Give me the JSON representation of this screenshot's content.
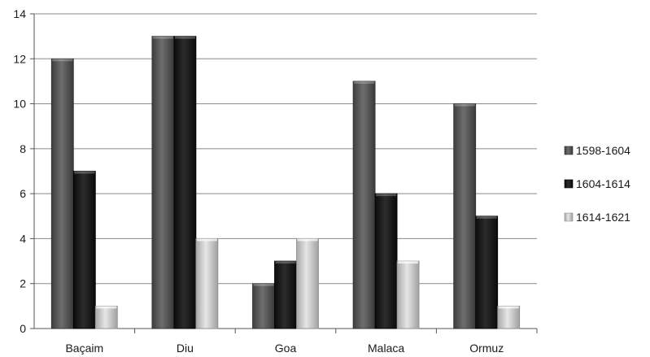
{
  "chart_data": {
    "type": "bar",
    "categories": [
      "Baçaim",
      "Diu",
      "Goa",
      "Malaca",
      "Ormuz"
    ],
    "series": [
      {
        "name": "1598-1604",
        "values": [
          12,
          13,
          2,
          11,
          10
        ],
        "color": "#5a5a5a"
      },
      {
        "name": "1604-1614",
        "values": [
          7,
          13,
          3,
          6,
          5
        ],
        "color": "#1c1c1c"
      },
      {
        "name": "1614-1621",
        "values": [
          1,
          4,
          4,
          3,
          1
        ],
        "color": "#c8c8c8"
      }
    ],
    "title": "",
    "xlabel": "",
    "ylabel": "",
    "ylim": [
      0,
      14
    ],
    "yticks": [
      0,
      2,
      4,
      6,
      8,
      10,
      12,
      14
    ],
    "grid": true,
    "legend": "right"
  }
}
